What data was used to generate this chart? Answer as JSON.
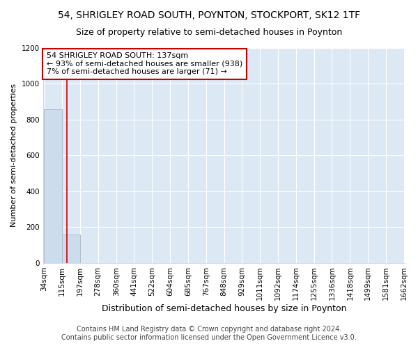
{
  "title": "54, SHRIGLEY ROAD SOUTH, POYNTON, STOCKPORT, SK12 1TF",
  "subtitle": "Size of property relative to semi-detached houses in Poynton",
  "xlabel": "Distribution of semi-detached houses by size in Poynton",
  "ylabel": "Number of semi-detached properties",
  "bar_edges": [
    34,
    115,
    197,
    278,
    360,
    441,
    522,
    604,
    685,
    767,
    848,
    929,
    1011,
    1092,
    1174,
    1255,
    1336,
    1418,
    1499,
    1581,
    1662
  ],
  "bar_heights": [
    860,
    160,
    0,
    0,
    0,
    0,
    0,
    0,
    0,
    0,
    0,
    0,
    0,
    0,
    0,
    0,
    0,
    0,
    0,
    0
  ],
  "bar_color": "#ccdcec",
  "bar_edgecolor": "#aabccc",
  "property_line_x": 137,
  "property_line_color": "#cc0000",
  "annotation_line1": "54 SHRIGLEY ROAD SOUTH: 137sqm",
  "annotation_line2": "← 93% of semi-detached houses are smaller (938)",
  "annotation_line3": "7% of semi-detached houses are larger (71) →",
  "annotation_box_facecolor": "#ffffff",
  "annotation_box_edgecolor": "#cc0000",
  "ylim": [
    0,
    1200
  ],
  "yticks": [
    0,
    200,
    400,
    600,
    800,
    1000,
    1200
  ],
  "footer_line1": "Contains HM Land Registry data © Crown copyright and database right 2024.",
  "footer_line2": "Contains public sector information licensed under the Open Government Licence v3.0.",
  "fig_facecolor": "#ffffff",
  "plot_bg_color": "#dce9f5",
  "grid_color": "#ffffff",
  "title_fontsize": 10,
  "subtitle_fontsize": 9,
  "xlabel_fontsize": 9,
  "ylabel_fontsize": 8,
  "tick_fontsize": 7.5,
  "annotation_fontsize": 8,
  "footer_fontsize": 7
}
